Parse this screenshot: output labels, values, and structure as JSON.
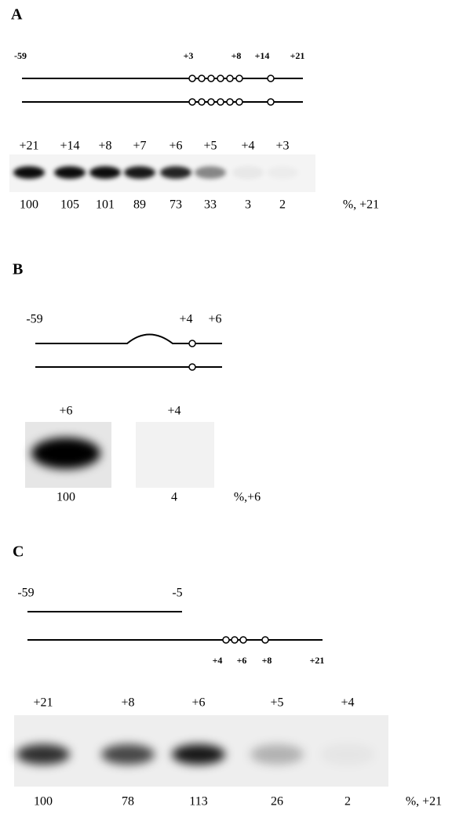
{
  "panels": [
    {
      "label": "A",
      "top_labels": [
        "-59",
        "+3",
        "+8",
        "+14",
        "+21"
      ],
      "lane_labels": [
        "+21",
        "+14",
        "+8",
        "+7",
        "+6",
        "+5",
        "+4",
        "+3"
      ],
      "percents": [
        "100",
        "105",
        "101",
        "89",
        "73",
        "33",
        "3",
        "2"
      ],
      "percent_unit": "%, +21"
    },
    {
      "label": "B",
      "top_labels": [
        "-59",
        "+4",
        "+6"
      ],
      "lane_labels": [
        "+6",
        "+4"
      ],
      "percents": [
        "100",
        "4"
      ],
      "percent_unit": "%,+6"
    },
    {
      "label": "C",
      "top_labels": [
        "-59",
        "-5"
      ],
      "bottom_labels": [
        "+4",
        "+6",
        "+8",
        "+21"
      ],
      "lane_labels": [
        "+21",
        "+8",
        "+6",
        "+5",
        "+4"
      ],
      "percents": [
        "100",
        "78",
        "113",
        "26",
        "2"
      ],
      "percent_unit": "%, +21"
    }
  ]
}
